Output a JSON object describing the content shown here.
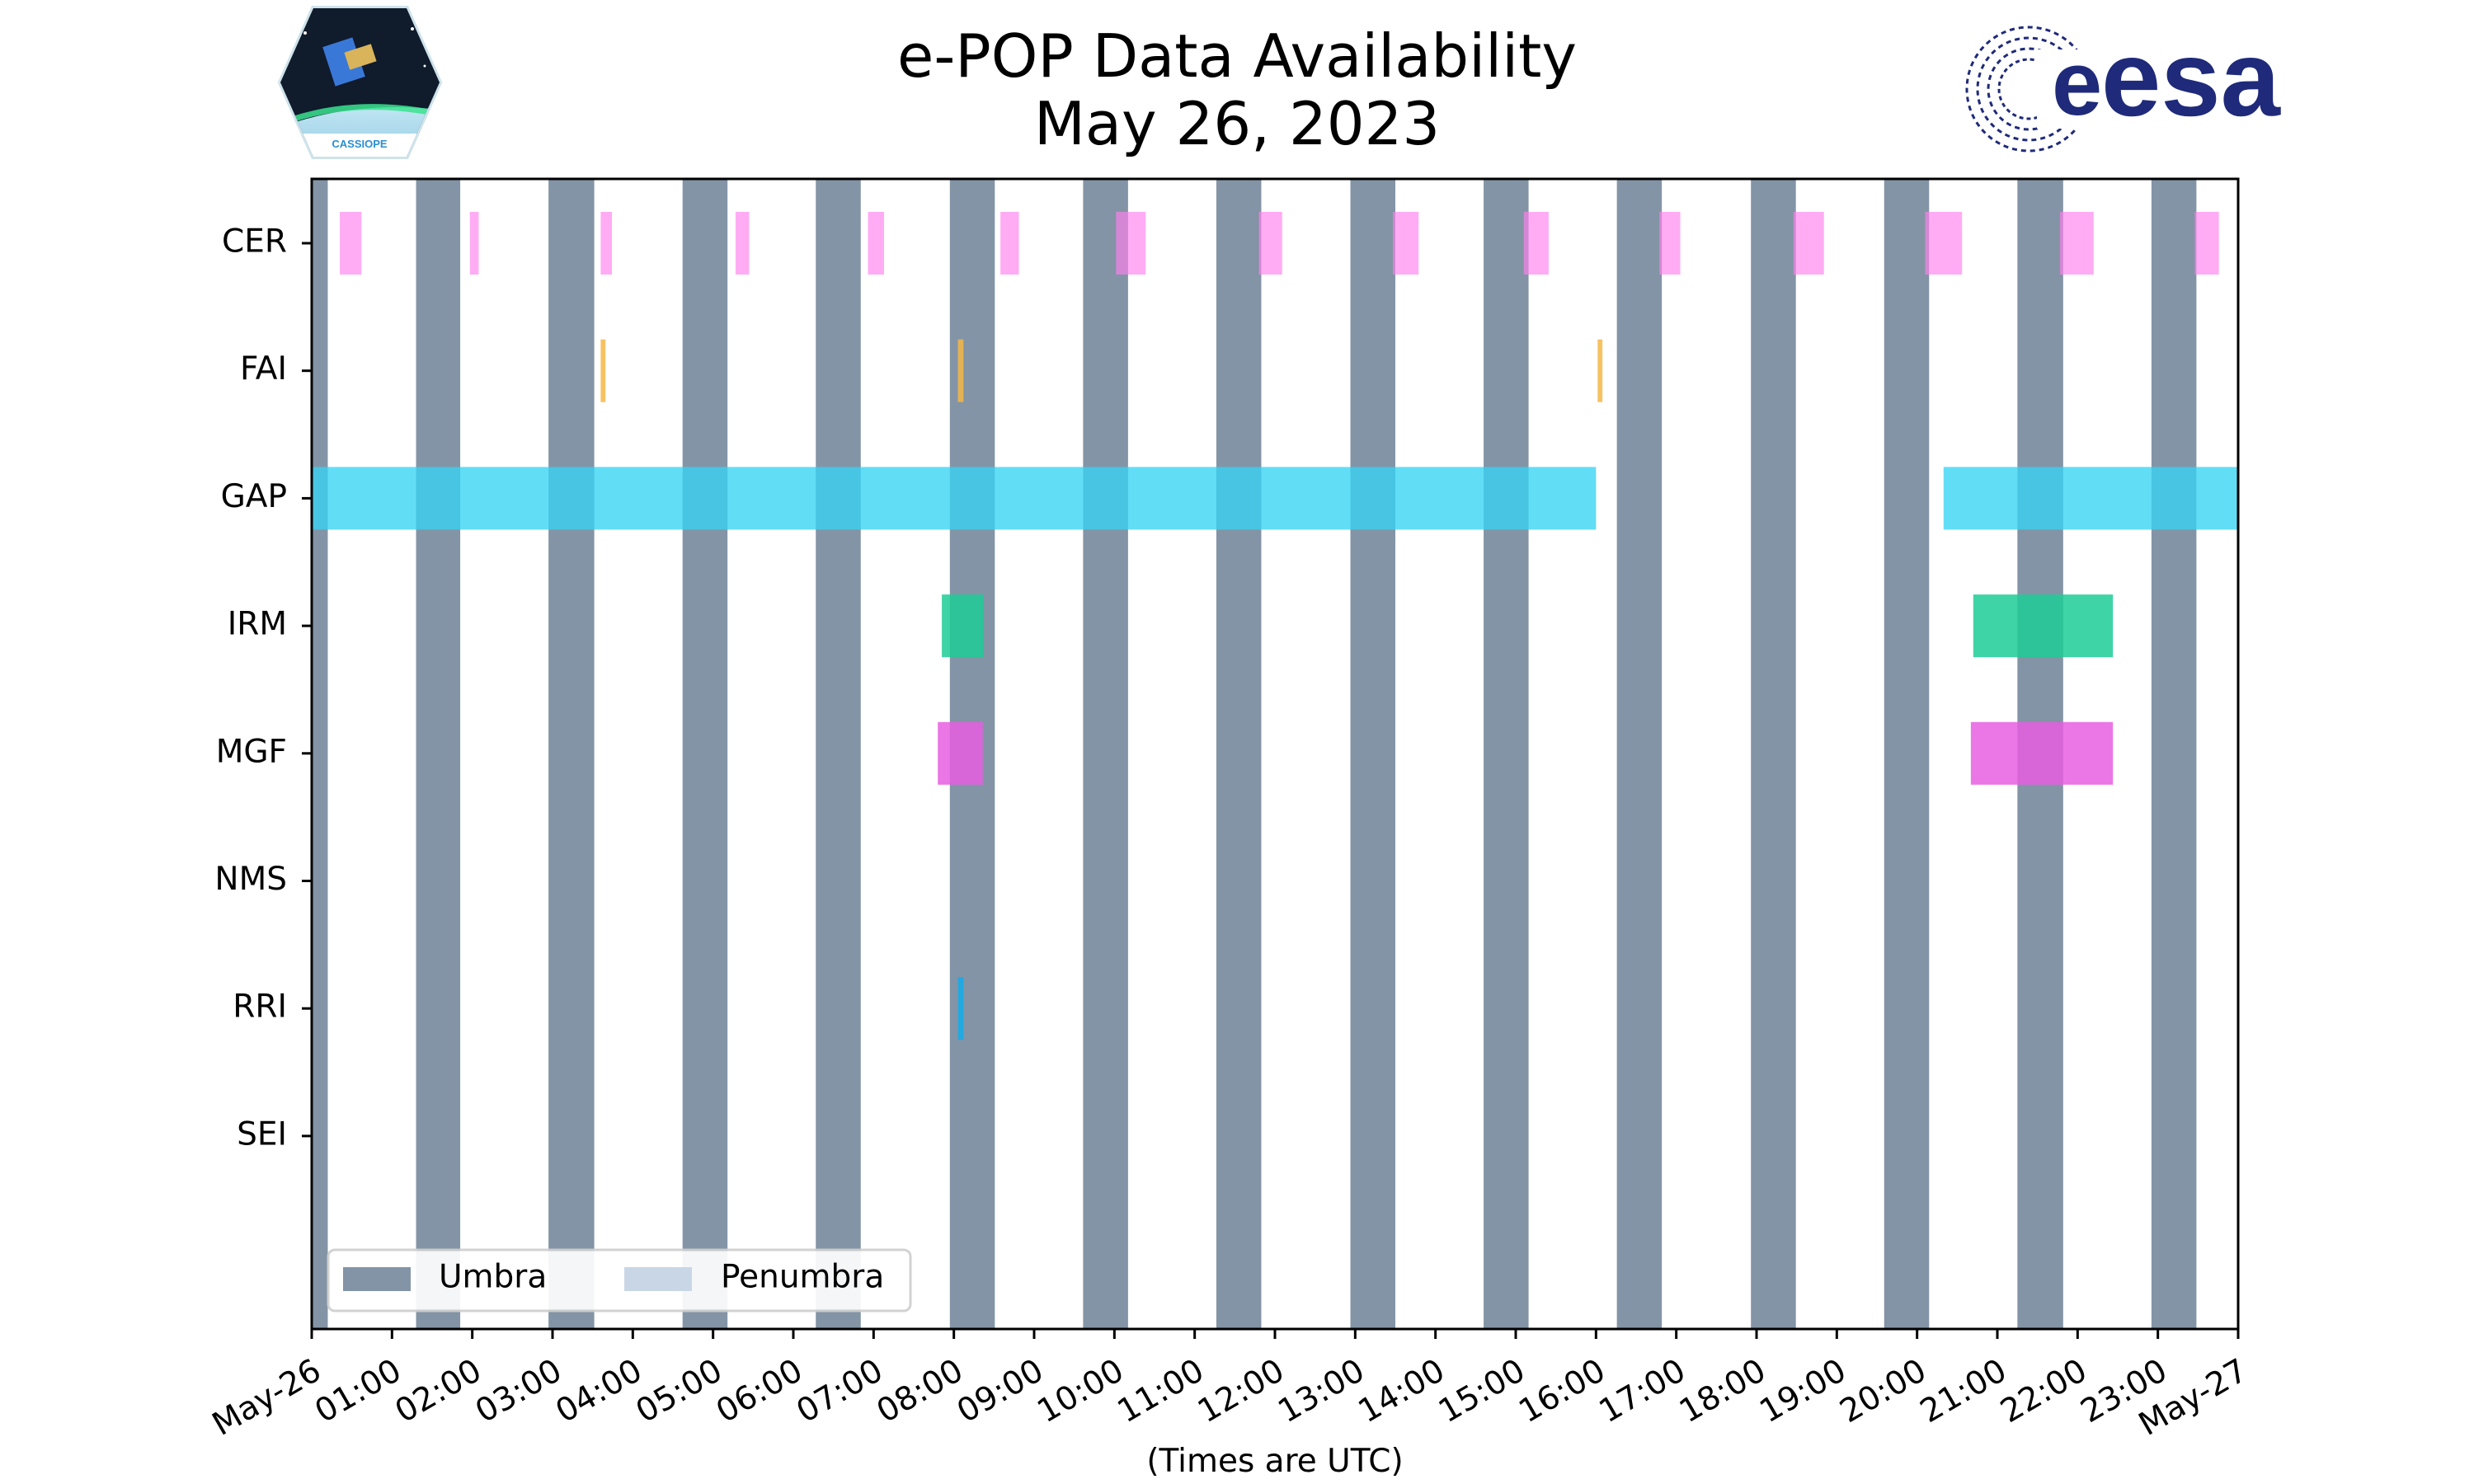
{
  "chart_data": {
    "type": "timeline",
    "title": "e-POP Data Availability",
    "subtitle": "May 26, 2023",
    "xlabel": "(Times are UTC)",
    "xlim_hours": [
      0,
      24
    ],
    "x_tick_labels": [
      "May-26",
      "01:00",
      "02:00",
      "03:00",
      "04:00",
      "05:00",
      "06:00",
      "07:00",
      "08:00",
      "09:00",
      "10:00",
      "11:00",
      "12:00",
      "13:00",
      "14:00",
      "15:00",
      "16:00",
      "17:00",
      "18:00",
      "19:00",
      "20:00",
      "21:00",
      "22:00",
      "23:00",
      "May-27"
    ],
    "instruments": [
      "CER",
      "FAI",
      "GAP",
      "IRM",
      "MGF",
      "NMS",
      "RRI",
      "SEI"
    ],
    "legend": [
      {
        "label": "Umbra",
        "color": "#8394a6"
      },
      {
        "label": "Penumbra",
        "color": "#c9d6e6"
      }
    ],
    "umbra_intervals": [
      [
        0.0,
        0.2
      ],
      [
        1.3,
        1.85
      ],
      [
        2.95,
        3.52
      ],
      [
        4.62,
        5.18
      ],
      [
        6.28,
        6.84
      ],
      [
        7.95,
        8.51
      ],
      [
        9.61,
        10.17
      ],
      [
        11.27,
        11.83
      ],
      [
        12.94,
        13.5
      ],
      [
        14.6,
        15.16
      ],
      [
        16.26,
        16.82
      ],
      [
        17.93,
        18.49
      ],
      [
        19.59,
        20.15
      ],
      [
        21.25,
        21.82
      ],
      [
        22.92,
        23.48
      ]
    ],
    "series": [
      {
        "name": "CER",
        "color": "#ff80ee",
        "opacity": 0.65,
        "intervals": [
          [
            0.35,
            0.62
          ],
          [
            1.97,
            2.08
          ],
          [
            3.6,
            3.74
          ],
          [
            5.28,
            5.45
          ],
          [
            6.93,
            7.13
          ],
          [
            8.58,
            8.81
          ],
          [
            10.02,
            10.39
          ],
          [
            11.8,
            12.09
          ],
          [
            13.47,
            13.79
          ],
          [
            15.1,
            15.41
          ],
          [
            16.79,
            17.05
          ],
          [
            18.46,
            18.84
          ],
          [
            20.1,
            20.56
          ],
          [
            21.78,
            22.2
          ],
          [
            23.46,
            23.76
          ]
        ]
      },
      {
        "name": "FAI",
        "color": "#f5b746",
        "opacity": 0.85,
        "intervals": [
          [
            3.6,
            3.66
          ],
          [
            8.05,
            8.12
          ],
          [
            16.02,
            16.08
          ]
        ]
      },
      {
        "name": "GAP",
        "color": "#36d3f4",
        "opacity": 0.78,
        "intervals": [
          [
            0.0,
            16.0
          ],
          [
            20.33,
            24.0
          ]
        ]
      },
      {
        "name": "IRM",
        "color": "#1dcc95",
        "opacity": 0.85,
        "intervals": [
          [
            7.85,
            8.37
          ],
          [
            20.7,
            22.44
          ]
        ]
      },
      {
        "name": "MGF",
        "color": "#e85ee0",
        "opacity": 0.85,
        "intervals": [
          [
            7.8,
            8.36
          ],
          [
            20.67,
            22.44
          ]
        ]
      },
      {
        "name": "NMS",
        "color": "#888888",
        "opacity": 0.85,
        "intervals": []
      },
      {
        "name": "RRI",
        "color": "#1fa9e3",
        "opacity": 0.95,
        "intervals": [
          [
            8.05,
            8.12
          ]
        ]
      },
      {
        "name": "SEI",
        "color": "#888888",
        "opacity": 0.85,
        "intervals": []
      }
    ]
  },
  "logos": {
    "left": {
      "name": "CASSIOPE mission patch",
      "text": "CASSIOPE"
    },
    "right": {
      "name": "ESA logo",
      "text": "esa",
      "color": "#1f2a7a"
    }
  }
}
